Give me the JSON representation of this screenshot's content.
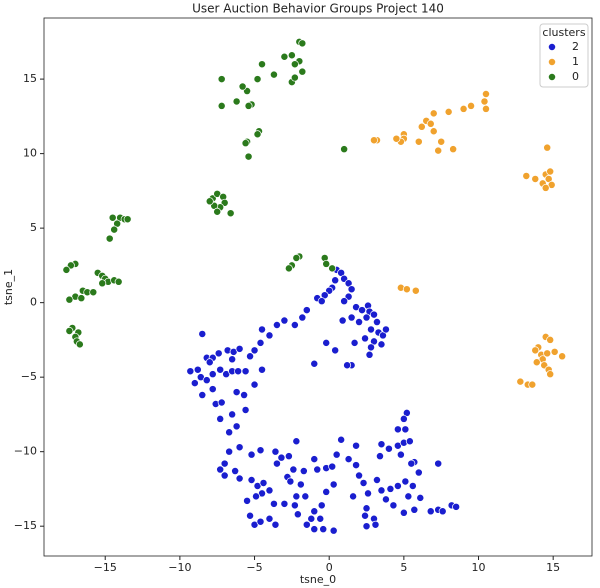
{
  "chart_data": {
    "type": "scatter",
    "title": "User Auction Behavior Groups Project 140",
    "xlabel": "tsne_0",
    "ylabel": "tsne_1",
    "legend_title": "clusters",
    "legend": "upper right",
    "xlim": [
      -19.1,
      17.6
    ],
    "ylim": [
      -17.0,
      19.1
    ],
    "xticks": [
      {
        "value": -15,
        "label": "−15"
      },
      {
        "value": -10,
        "label": "−10"
      },
      {
        "value": -5,
        "label": "−5"
      },
      0,
      5,
      10,
      15
    ],
    "yticks": [
      {
        "value": -15,
        "label": "−15"
      },
      {
        "value": -10,
        "label": "−10"
      },
      {
        "value": -5,
        "label": "−5"
      },
      0,
      5,
      10,
      15
    ],
    "series": [
      {
        "name": "2",
        "color": "#1a1ecf",
        "x": [
          0.5,
          0.8,
          1,
          0.4,
          0.2,
          0,
          -0.3,
          -0.8,
          -0.5,
          1.3,
          1.5,
          1.3,
          1,
          -1.5,
          -1.8,
          -2.3,
          -3,
          -3.5,
          -4,
          -4.6,
          -5,
          -4.5,
          1.8,
          2.2,
          2.6,
          2.7,
          3,
          2.5,
          2,
          3.2,
          2.8,
          3.3,
          3.6,
          2.4,
          3,
          3.5,
          2.8,
          1.5,
          1.7,
          -0.2,
          1.5,
          1.2,
          -1,
          0.4,
          2.7,
          3.8,
          0.9,
          -8.5,
          -8.2,
          -7.8,
          -7.4,
          -6.8,
          -6.4,
          -6,
          -8.8,
          -8.6,
          -8.2,
          -7.8,
          -7.3,
          -6.9,
          -6.5,
          -6.1,
          -5.6,
          -4.5,
          -5,
          -7.8,
          -8.5,
          -7.6,
          -7.2,
          -6.2,
          -5.7,
          -5.6,
          -6.5,
          -7.3,
          -6.2,
          -6.7,
          -9.3,
          -9,
          -8,
          -6.5,
          -5.3,
          -5.2,
          -4.6,
          -6,
          -6.7,
          -7,
          -7.3,
          -7,
          -6.3,
          -6,
          -5.2,
          -4.8,
          -4.4,
          -4.5,
          -4,
          -3.5,
          -3.6,
          -3.2,
          -2.7,
          -2.2,
          -2.4,
          -2.8,
          -2.6,
          -1.9,
          -1.7,
          -1,
          -0.8,
          -0.2,
          0.2,
          0.5,
          0.8,
          1.3,
          1.8,
          1.8,
          2,
          2.3,
          -3,
          -3.7,
          -2.2,
          -2.3,
          -1.6,
          -1,
          -1.2,
          -1.5,
          -1,
          -0.4,
          0.3,
          -0.6,
          -0.5,
          -0.2,
          0.3,
          -5.3,
          -5,
          -4.6,
          -4,
          -3.6,
          -2.1,
          2.5,
          2.4,
          3,
          2.5,
          3.1,
          4.3,
          3.8,
          3.5,
          3.2,
          4.1,
          4.6,
          5.1,
          5.6,
          5.3,
          5.7,
          5,
          6.1,
          6.8,
          7.3,
          7.6,
          8.2,
          8.5,
          3.4,
          3.5,
          4,
          4.6,
          5,
          5.4,
          5.1,
          5.2,
          5,
          4.6,
          4.8,
          5.7,
          6,
          5.5,
          7.3,
          2.6,
          1.6,
          -4.9,
          -5.5
        ],
        "values": [
          2.2,
          2,
          1.6,
          1.5,
          1,
          0.8,
          0.5,
          0.3,
          0.1,
          1.3,
          0.9,
          0.4,
          0.1,
          -0.5,
          -1,
          -1.5,
          -1.2,
          -1.5,
          -2.2,
          -2.7,
          -3.2,
          -1.8,
          -0.3,
          -0.5,
          -0.2,
          -0.6,
          -0.8,
          -1,
          -1.3,
          -1.3,
          -1.8,
          -2,
          -2.2,
          -2.4,
          -2.6,
          -2.8,
          -3,
          -1,
          -2.7,
          -2.7,
          -4.2,
          -4.2,
          -4.1,
          -3.2,
          -3.5,
          -1.8,
          -1.2,
          -2.1,
          -3.7,
          -3.7,
          -3.4,
          -3.2,
          -3.3,
          -3.1,
          -4.5,
          -5,
          -5.2,
          -4.8,
          -4.5,
          -4.8,
          -4.6,
          -4.6,
          -4.6,
          -4.5,
          -5.5,
          -5.8,
          -6.2,
          -6.8,
          -6.7,
          -6,
          -6.2,
          -7.2,
          -7.5,
          -7.8,
          -8.3,
          -8.7,
          -4.6,
          -5.4,
          -4,
          -3.8,
          -3.6,
          -10.2,
          -9.9,
          -9.7,
          -10,
          -10.8,
          -11.2,
          -11.6,
          -11.3,
          -11.8,
          -11.9,
          -12.3,
          -12.1,
          -12.8,
          -12.6,
          -10.8,
          -10,
          -10.4,
          -10.3,
          -9.3,
          -11.2,
          -11.7,
          -12,
          -12.2,
          -11.3,
          -10.5,
          -11.2,
          -11.1,
          -11,
          -10.2,
          -9.2,
          -10.5,
          -9.6,
          -10.9,
          -11.6,
          -12.1,
          -13.5,
          -13.5,
          -13,
          -13.6,
          -13,
          -14,
          -14.5,
          -14.9,
          -15.2,
          -15.2,
          -15.3,
          -14.5,
          -13.6,
          -12.7,
          -12.2,
          -14.3,
          -14.9,
          -14.7,
          -14.5,
          -14.9,
          -14.2,
          -13.8,
          -14.3,
          -14.5,
          -15,
          -14.9,
          -13.6,
          -13.2,
          -12.6,
          -11.9,
          -12.5,
          -12.3,
          -12,
          -12.3,
          -13,
          -13.9,
          -14.1,
          -13.1,
          -14,
          -13.9,
          -14,
          -13.6,
          -13.7,
          -10.3,
          -9.5,
          -9.8,
          -9.6,
          -9.4,
          -9.3,
          -8.5,
          -7.4,
          -7.8,
          -8.5,
          -10.2,
          -10.7,
          -11.4,
          -10.8,
          -10.8,
          -12.8,
          -13,
          -13,
          -13.3
        ]
      },
      {
        "name": "1",
        "color": "#f0a22e",
        "x": [
          10.5,
          10.4,
          10.5,
          9.5,
          9,
          8,
          7,
          6.5,
          6.8,
          6.2,
          7,
          5,
          5,
          4.8,
          6,
          7.5,
          7.3,
          8.3,
          4.5,
          3.2,
          3,
          13.2,
          13.8,
          14.5,
          14.7,
          14.3,
          14.9,
          14.5,
          14.8,
          14.6,
          4.8,
          5.2,
          5.8,
          14.5,
          14.8,
          14,
          13.8,
          14.2,
          14.6,
          14.3,
          13.9,
          14.4,
          14.7,
          14.8,
          15.6,
          15.1,
          12.8,
          13.3,
          13.6
        ],
        "values": [
          14,
          13.5,
          13,
          13.2,
          13,
          12.8,
          12.7,
          12.2,
          12,
          11.8,
          11.5,
          11.3,
          11,
          10.8,
          10.8,
          10.8,
          10.2,
          10.3,
          11,
          10.9,
          10.9,
          8.5,
          8.3,
          8.6,
          8.3,
          8,
          7.9,
          7.7,
          8.8,
          10.4,
          1,
          0.9,
          0.8,
          -2.3,
          -2.5,
          -3,
          -3.2,
          -3.5,
          -3.4,
          -3.8,
          -4,
          -4.2,
          -4.5,
          -4.8,
          -3.6,
          -3.3,
          -5.3,
          -5.5,
          -5.5
        ]
      },
      {
        "name": "0",
        "color": "#2b7a1c",
        "x": [
          -2,
          -1.8,
          -3,
          -2.5,
          -2,
          -2.3,
          -1.8,
          -2.5,
          -2.3,
          -4.5,
          -3.7,
          -5.5,
          -7.2,
          -4.8,
          -5.8,
          -5.2,
          -5.4,
          -7.2,
          -6.2,
          -4.7,
          -4.8,
          -5.5,
          -5.6,
          -5.4,
          1,
          -7.8,
          -7.5,
          -7.1,
          -7,
          -7.3,
          -7.7,
          -8,
          -6.6,
          -7.5,
          -14.5,
          -14,
          -13.7,
          -13.5,
          -14.2,
          -14.4,
          -14.7,
          -17,
          -17.3,
          -17.6,
          -15.5,
          -15.2,
          -15,
          -14.8,
          -14.4,
          -14.1,
          -15.2,
          -16.5,
          -16.2,
          -15.8,
          -17,
          -17.4,
          -16.6,
          -17.2,
          -17.4,
          -16.8,
          -17,
          -16.9,
          -16.7,
          -2.5,
          -2.7,
          -2,
          -2.2,
          -0.3,
          -0.2,
          0.2
        ],
        "values": [
          17.5,
          17.4,
          16.5,
          16.6,
          16.2,
          16,
          15.5,
          14.8,
          15.1,
          16,
          15.3,
          14.2,
          15,
          15,
          14.5,
          13.3,
          13.2,
          13.2,
          13.5,
          11.5,
          11.3,
          10.8,
          10.7,
          9.8,
          10.3,
          7,
          7.3,
          7.1,
          6.7,
          6.4,
          6.5,
          6.8,
          6,
          6.1,
          5.7,
          5.7,
          5.6,
          5.6,
          5.3,
          4.9,
          4.3,
          2.6,
          2.5,
          2.2,
          2,
          1.8,
          1.6,
          1.4,
          1.5,
          1.4,
          1.3,
          0.8,
          0.7,
          0.7,
          0.4,
          0.2,
          0.3,
          -1.7,
          -1.9,
          -2,
          -2.3,
          -2.6,
          -2.8,
          2.5,
          2.3,
          3.1,
          3,
          3,
          2.6,
          2.3
        ]
      }
    ]
  }
}
